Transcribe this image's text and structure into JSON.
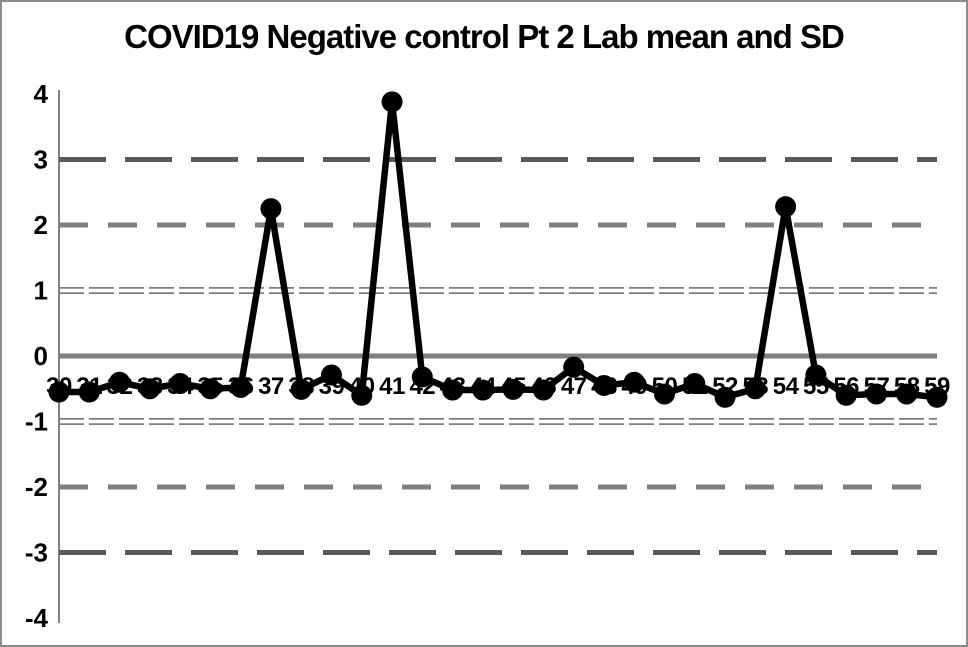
{
  "window": {
    "background": "#ffffff",
    "border_color": "#8a8a8a"
  },
  "chart_data": {
    "type": "line",
    "title": "COVID19 Negative control Pt 2 Lab mean and SD",
    "xlabel": "",
    "ylabel": "",
    "legend": "none",
    "grid": "horizontal-reference-lines-only",
    "x": [
      "30",
      "31",
      "32",
      "33",
      "34",
      "35",
      "36",
      "37",
      "38",
      "39",
      "40",
      "41",
      "42",
      "43",
      "44",
      "45",
      "46",
      "47",
      "48",
      "49",
      "50",
      "51",
      "52",
      "53",
      "54",
      "55",
      "56",
      "57",
      "58",
      "59"
    ],
    "values": [
      -0.55,
      -0.55,
      -0.4,
      -0.5,
      -0.42,
      -0.5,
      -0.48,
      2.25,
      -0.51,
      -0.29,
      -0.6,
      3.88,
      -0.32,
      -0.52,
      -0.52,
      -0.51,
      -0.52,
      -0.17,
      -0.45,
      -0.4,
      -0.58,
      -0.42,
      -0.63,
      -0.5,
      2.28,
      -0.29,
      -0.6,
      -0.58,
      -0.58,
      -0.63
    ],
    "ylim": [
      -4,
      4
    ],
    "yticks": [
      "4",
      "3",
      "2",
      "1",
      "0",
      "-1",
      "-2",
      "-3",
      "-4"
    ],
    "reference_lines": [
      {
        "level": 3,
        "style": "dashed-long",
        "meaning": "+3 SD"
      },
      {
        "level": 2,
        "style": "dashed-medium",
        "meaning": "+2 SD"
      },
      {
        "level": 1,
        "style": "double-thin-dashed",
        "meaning": "+1 SD"
      },
      {
        "level": 0,
        "style": "solid-thick",
        "meaning": "mean"
      },
      {
        "level": -1,
        "style": "double-thin-dashed",
        "meaning": "-1 SD"
      },
      {
        "level": -2,
        "style": "dashed-medium",
        "meaning": "-2 SD"
      },
      {
        "level": -3,
        "style": "dashed-long",
        "meaning": "-3 SD"
      }
    ],
    "colors": {
      "series": "#000000",
      "reference_line_gray": "#7f7f7f",
      "reference_line_dark": "#595959",
      "axis": "#808080",
      "text": "#000000"
    }
  }
}
